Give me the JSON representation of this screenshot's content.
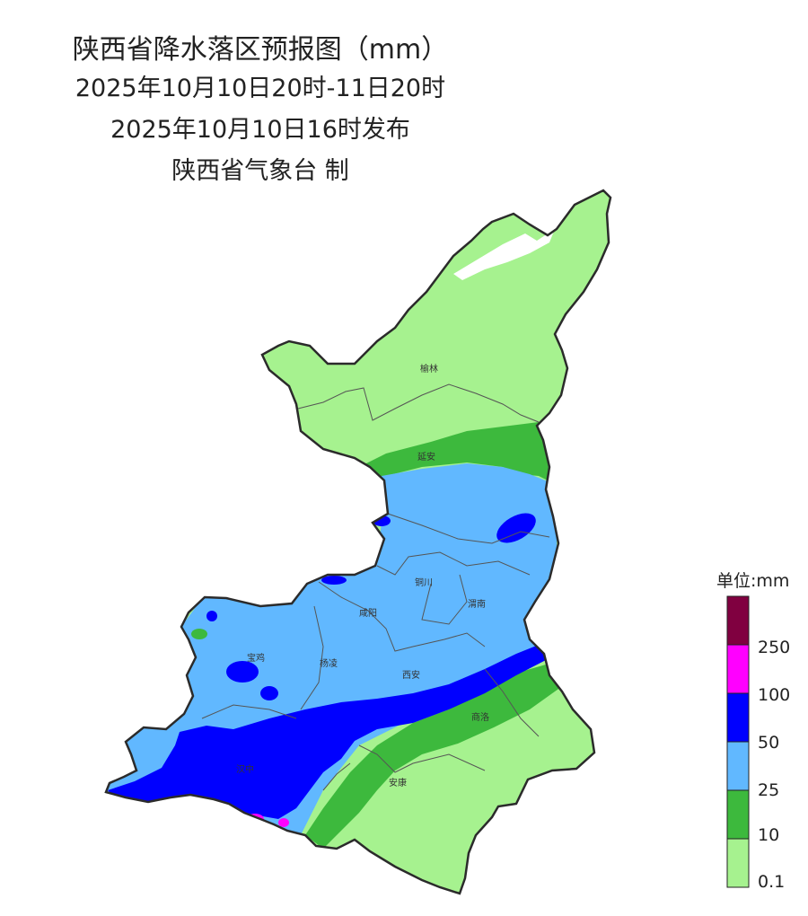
{
  "header": {
    "title": "陕西省降水落区预报图（mm）",
    "period": "2025年10月10日20时-11日20时",
    "issued": "2025年10月10日16时发布",
    "producer": "陕西省气象台 制"
  },
  "cities": [
    "榆林",
    "延安",
    "铜川",
    "咸阳",
    "渭南",
    "宝鸡",
    "杨凌",
    "西安",
    "商洛",
    "汉中",
    "安康"
  ],
  "legend": {
    "unit": "单位:mm",
    "labels": [
      "250",
      "100",
      "50",
      "25",
      "10",
      "0.1"
    ],
    "colors": {
      "over_250": "#800040",
      "100_250": "#ff00ff",
      "50_100": "#0000ff",
      "25_50": "#61b8ff",
      "10_25": "#3db93d",
      "0.1_10": "#a6f28f"
    }
  }
}
